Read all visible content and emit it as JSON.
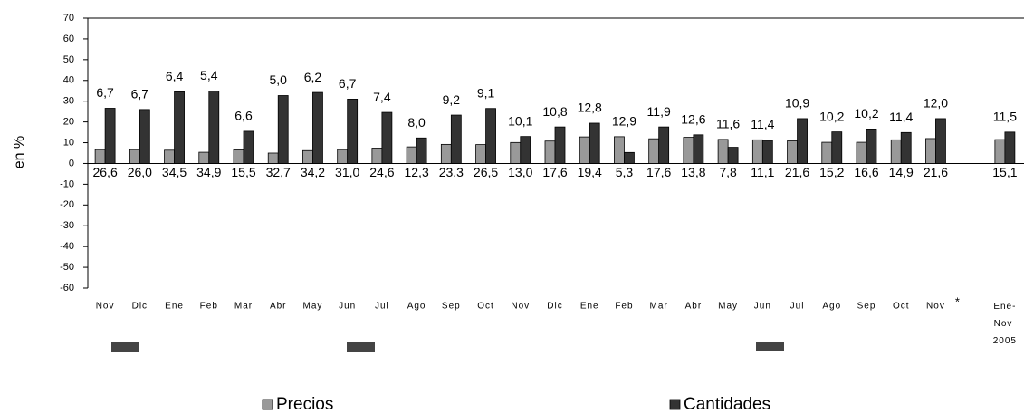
{
  "chart_data": {
    "type": "bar",
    "y_label": "en %",
    "annotation": "*",
    "categories": [
      "Nov",
      "Dic",
      "Ene",
      "Feb",
      "Mar",
      "Abr",
      "May",
      "Jun",
      "Jul",
      "Ago",
      "Sep",
      "Oct",
      "Nov",
      "Dic",
      "Ene",
      "Feb",
      "Mar",
      "Abr",
      "May",
      "Jun",
      "Jul",
      "Ago",
      "Sep",
      "Oct",
      "Nov",
      null,
      "Ene-Nov 2005"
    ],
    "series": [
      {
        "name": "Precios",
        "color": "#999999",
        "values": [
          6.7,
          6.7,
          6.4,
          5.4,
          6.6,
          5.0,
          6.2,
          6.7,
          7.4,
          8.0,
          9.2,
          9.1,
          10.1,
          10.8,
          12.8,
          12.9,
          11.9,
          12.6,
          11.6,
          11.4,
          10.9,
          10.2,
          10.2,
          11.4,
          12.0,
          null,
          11.5
        ],
        "value_labels": [
          "6,7",
          "6,7",
          "6,4",
          "5,4",
          "6,6",
          "5,0",
          "6,2",
          "6,7",
          "7,4",
          "8,0",
          "9,2",
          "9,1",
          "10,1",
          "10,8",
          "12,8",
          "12,9",
          "11,9",
          "12,6",
          "11,6",
          "11,4",
          "10,9",
          "10,2",
          "10,2",
          "11,4",
          "12,0",
          null,
          "11,5"
        ]
      },
      {
        "name": "Cantidades",
        "color": "#333333",
        "values": [
          26.6,
          26.0,
          34.5,
          34.9,
          15.5,
          32.7,
          34.2,
          31.0,
          24.6,
          12.3,
          23.3,
          26.5,
          13.0,
          17.6,
          19.4,
          5.3,
          17.6,
          13.8,
          7.8,
          11.1,
          21.6,
          15.2,
          16.6,
          14.9,
          21.6,
          null,
          15.1
        ],
        "value_labels": [
          "26,6",
          "26,0",
          "34,5",
          "34,9",
          "15,5",
          "32,7",
          "34,2",
          "31,0",
          "24,6",
          "12,3",
          "23,3",
          "26,5",
          "13,0",
          "17,6",
          "19,4",
          "5,3",
          "17,6",
          "13,8",
          "7,8",
          "11,1",
          "21,6",
          "15,2",
          "16,6",
          "14,9",
          "21,6",
          null,
          "15,1"
        ]
      }
    ],
    "ylim": [
      -60,
      70
    ],
    "yticks": [
      -60,
      -50,
      -40,
      -30,
      -20,
      -10,
      0,
      10,
      20,
      30,
      40,
      50,
      60,
      70
    ],
    "grid": false,
    "legend": "bottom"
  }
}
